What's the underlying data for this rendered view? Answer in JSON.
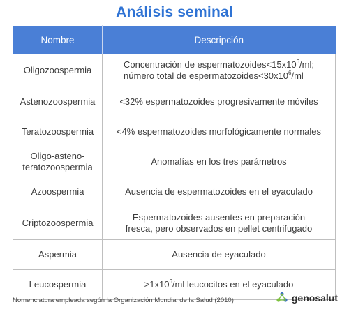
{
  "title": "Análisis seminal",
  "table": {
    "headers": [
      "Nombre",
      "Descripción"
    ],
    "rows": [
      {
        "name": "Oligozoospermia",
        "desc_line1_pre": "Concentración de espermatozoides<15x10",
        "desc_line1_sup": "6",
        "desc_line1_post": "/ml;",
        "desc_line2_pre": "número total de espermatozoides<30x10",
        "desc_line2_sup": "6",
        "desc_line2_post": "/ml"
      },
      {
        "name": "Astenozoospermia",
        "desc": "<32% espermatozoides progresivamente móviles"
      },
      {
        "name": "Teratozoospermia",
        "desc": "<4% espermatozoides morfológicamente normales"
      },
      {
        "name_line1": "Oligo-asteno-",
        "name_line2": "teratozoospermia",
        "desc": "Anomalías en los tres parámetros"
      },
      {
        "name": "Azoospermia",
        "desc": "Ausencia de espermatozoides en el eyaculado"
      },
      {
        "name": "Criptozoospermia",
        "desc_line1": "Espermatozoides ausentes en preparación",
        "desc_line2": "fresca, pero observados en pellet centrifugado"
      },
      {
        "name": "Aspermia",
        "desc": "Ausencia de eyaculado"
      },
      {
        "name": "Leucospermia",
        "desc_pre": ">1x10",
        "desc_sup": "6",
        "desc_post": "/ml leucocitos en el eyaculado"
      }
    ]
  },
  "footnote": "Nomenclatura empleada según la Organización Mundial de la Salud (2010)",
  "brand": {
    "name": "genosalut",
    "logo_icon": "genosalut-logo-icon",
    "logo_colors": [
      "#3b6fc4",
      "#7fc241"
    ]
  }
}
